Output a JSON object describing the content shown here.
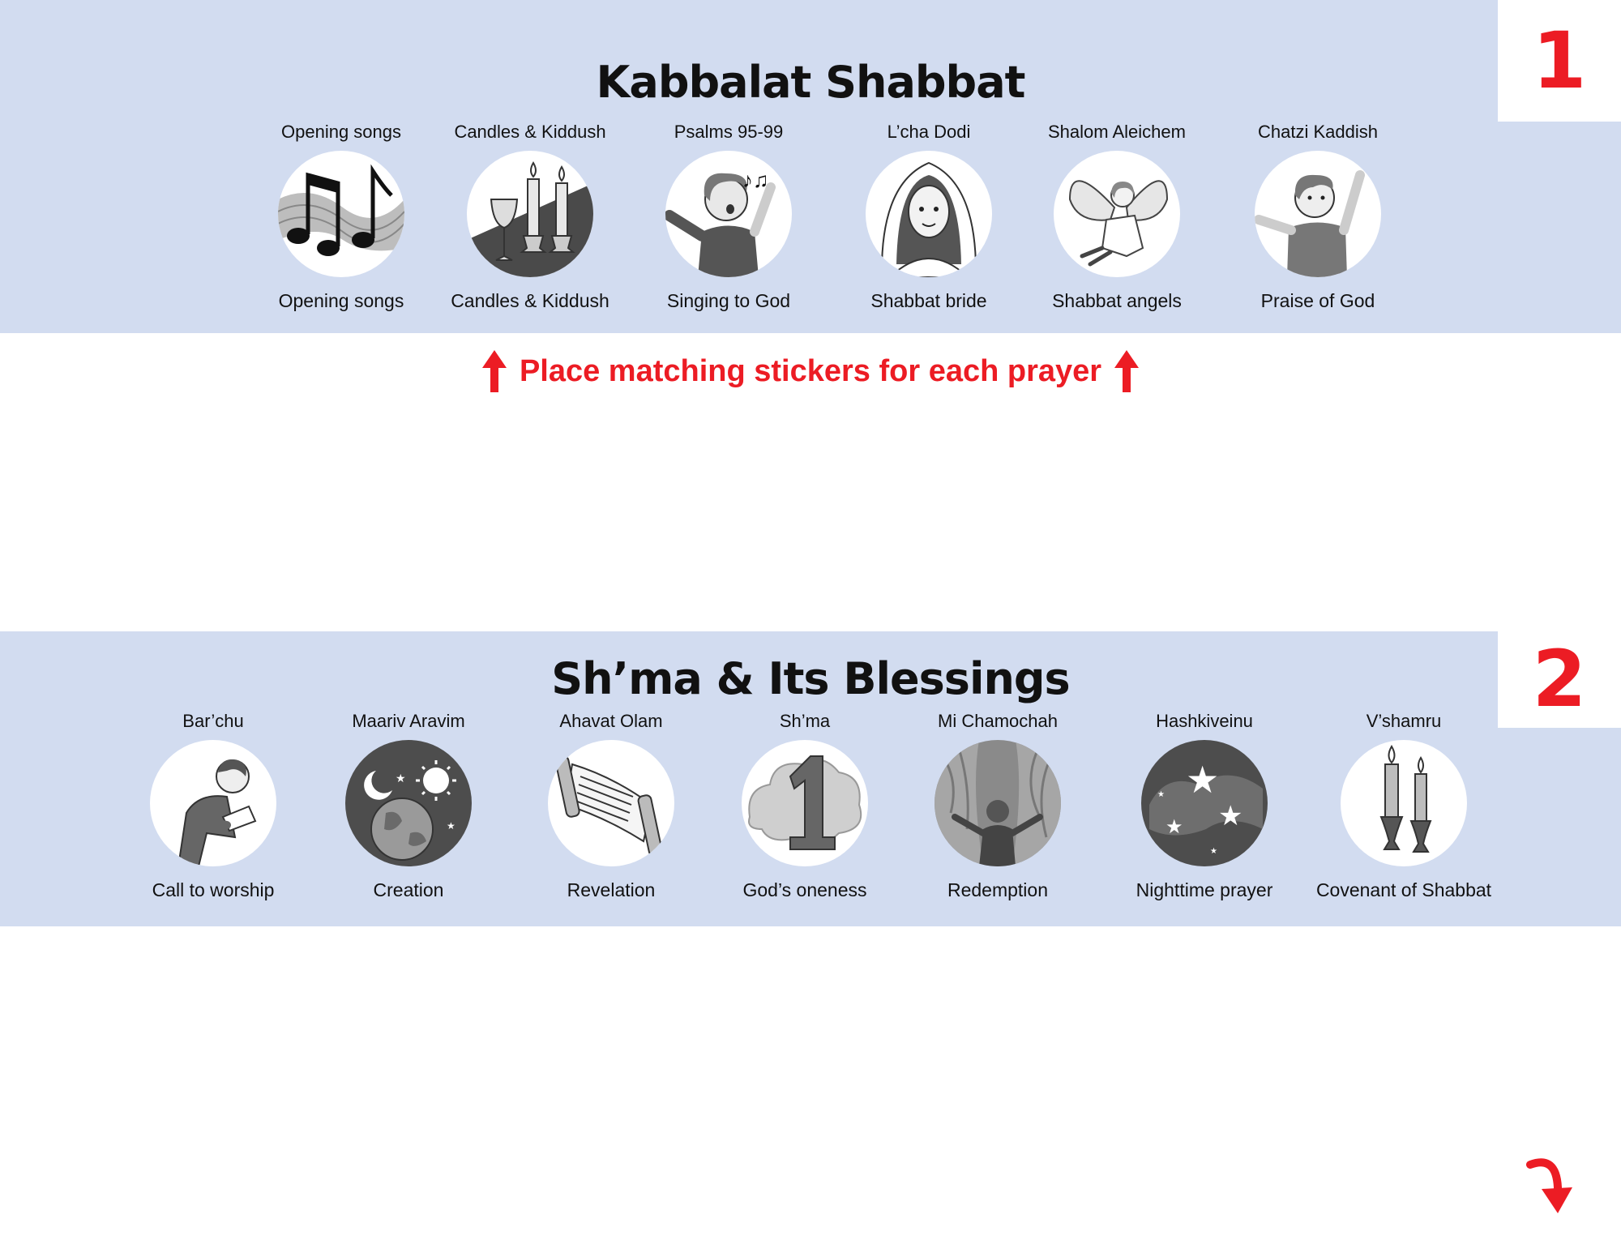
{
  "section1": {
    "number": "1",
    "title": "Kabbalat Shabbat",
    "items": [
      {
        "prayer": "Opening songs",
        "meaning": "Opening songs",
        "icon": "music-notes-icon"
      },
      {
        "prayer": "Candles & Kiddush",
        "meaning": "Candles & Kiddush",
        "icon": "candles-kiddush-cup-icon"
      },
      {
        "prayer": "Psalms 95-99",
        "meaning": "Singing to God",
        "icon": "singing-person-icon"
      },
      {
        "prayer": "L’cha Dodi",
        "meaning": "Shabbat bride",
        "icon": "bride-icon"
      },
      {
        "prayer": "Shalom Aleichem",
        "meaning": "Shabbat angels",
        "icon": "angel-icon"
      },
      {
        "prayer": "Chatzi Kaddish",
        "meaning": "Praise of God",
        "icon": "praising-boy-icon"
      }
    ]
  },
  "instruction": "Place matching stickers for each prayer",
  "section2": {
    "number": "2",
    "title": "Sh’ma & Its Blessings",
    "items": [
      {
        "prayer": "Bar’chu",
        "meaning": "Call to worship",
        "icon": "person-reading-icon"
      },
      {
        "prayer": "Maariv Aravim",
        "meaning": "Creation",
        "icon": "earth-sun-moon-icon"
      },
      {
        "prayer": "Ahavat Olam",
        "meaning": "Revelation",
        "icon": "torah-scroll-icon"
      },
      {
        "prayer": "Sh’ma",
        "meaning": "God’s oneness",
        "icon": "number-one-icon"
      },
      {
        "prayer": "Mi Chamochah",
        "meaning": "Redemption",
        "icon": "parting-sea-icon"
      },
      {
        "prayer": "Hashkiveinu",
        "meaning": "Nighttime prayer",
        "icon": "night-stars-icon"
      },
      {
        "prayer": "V’shamru",
        "meaning": "Covenant of Shabbat",
        "icon": "shabbat-candles-icon"
      }
    ]
  },
  "colors": {
    "band": "#d2dcf0",
    "accent": "#ec1c24",
    "text": "#111111"
  }
}
